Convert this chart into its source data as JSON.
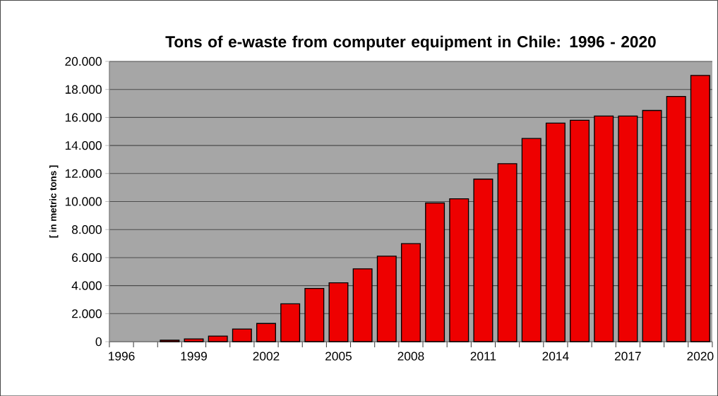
{
  "chart_data": {
    "type": "bar",
    "title": "Tons of e-waste from computer equipment in Chile: 1996 - 2020",
    "ylabel": "[ in metric tons ]",
    "categories": [
      "1996",
      null,
      null,
      "1999",
      null,
      null,
      "2002",
      null,
      null,
      "2005",
      null,
      null,
      "2008",
      null,
      null,
      "2011",
      null,
      null,
      "2014",
      null,
      null,
      "2017",
      null,
      null,
      "2020"
    ],
    "values": [
      null,
      null,
      100,
      200,
      400,
      900,
      1300,
      2700,
      3800,
      4200,
      5200,
      6100,
      7000,
      9900,
      10200,
      11600,
      12700,
      14500,
      15600,
      15800,
      16100,
      16100,
      16500,
      17500,
      19000
    ],
    "color": "#ee0000",
    "ylim": [
      0,
      20000
    ],
    "yticks": [
      {
        "value": 0,
        "label": "0"
      },
      {
        "value": 2000,
        "label": "2.000"
      },
      {
        "value": 4000,
        "label": "4.000"
      },
      {
        "value": 6000,
        "label": "6.000"
      },
      {
        "value": 8000,
        "label": "8.000"
      },
      {
        "value": 10000,
        "label": "10.000"
      },
      {
        "value": 12000,
        "label": "12.000"
      },
      {
        "value": 14000,
        "label": "14.000"
      },
      {
        "value": 16000,
        "label": "16.000"
      },
      {
        "value": 18000,
        "label": "18.000"
      },
      {
        "value": 20000,
        "label": "20.000"
      }
    ],
    "grid": "y"
  }
}
